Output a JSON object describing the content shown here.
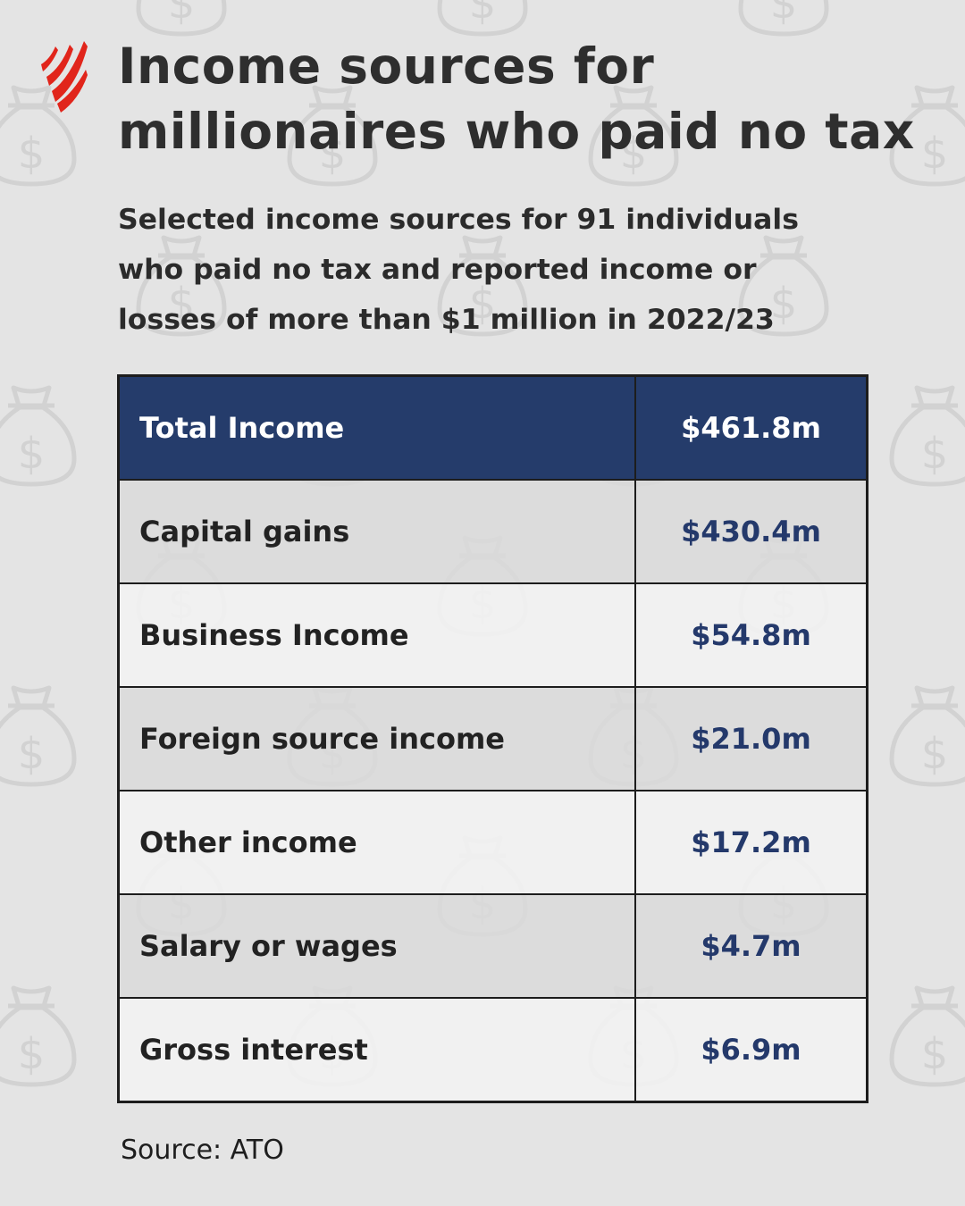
{
  "title_line1": "Income sources for",
  "title_line2": "millionaires who paid no tax",
  "subtitle_line1": "Selected income sources for 91 individuals",
  "subtitle_line2": "who paid no tax and reported income or",
  "subtitle_line3": "losses of more than $1 million in 2022/23",
  "source": "Source: ATO",
  "background_glyph": "$",
  "colors": {
    "header_bg": "#253c6b",
    "value_text": "#24396b",
    "logo_red": "#e1251b",
    "background": "#e4e4e4"
  },
  "chart_data": {
    "type": "table",
    "total": {
      "label": "Total Income",
      "display": "$461.8m",
      "value": 461.8
    },
    "rows": [
      {
        "label": "Capital gains",
        "display": "$430.4m",
        "value": 430.4
      },
      {
        "label": "Business Income",
        "display": "$54.8m",
        "value": 54.8
      },
      {
        "label": "Foreign source income",
        "display": "$21.0m",
        "value": 21.0
      },
      {
        "label": "Other income",
        "display": "$17.2m",
        "value": 17.2
      },
      {
        "label": "Salary or wages",
        "display": "$4.7m",
        "value": 4.7
      },
      {
        "label": "Gross interest",
        "display": "$6.9m",
        "value": 6.9
      }
    ]
  }
}
